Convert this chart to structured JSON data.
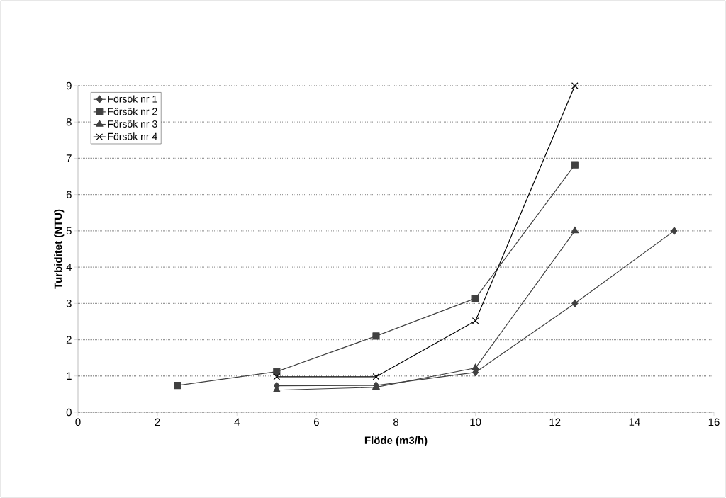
{
  "chart_data": {
    "type": "line",
    "xlabel": "Flöde (m3/h)",
    "ylabel": "Turbiditet (NTU)",
    "xlim": [
      0,
      16
    ],
    "xticks": [
      0,
      2,
      4,
      6,
      8,
      10,
      12,
      14,
      16
    ],
    "ylim": [
      0,
      9
    ],
    "yticks": [
      0,
      1,
      2,
      3,
      4,
      5,
      6,
      7,
      8,
      9
    ],
    "grid": "y",
    "legend": "top left",
    "line_style": "solid",
    "series": [
      {
        "name": "Försök nr 1",
        "color": "#404040",
        "marker": "diamond",
        "x": [
          5,
          7.5,
          10,
          12.5,
          15
        ],
        "values": [
          0.73,
          0.74,
          1.1,
          3.0,
          5.0
        ]
      },
      {
        "name": "Försök nr 2",
        "color": "#404040",
        "marker": "square",
        "x": [
          2.5,
          5,
          7.5,
          10,
          12.5
        ],
        "values": [
          0.74,
          1.12,
          2.1,
          3.14,
          6.82
        ]
      },
      {
        "name": "Försök nr 3",
        "color": "#404040",
        "marker": "triangle",
        "x": [
          5,
          7.5,
          10,
          12.5
        ],
        "values": [
          0.61,
          0.69,
          1.22,
          5.0
        ]
      },
      {
        "name": "Försök nr 4",
        "color": "#000000",
        "marker": "cross",
        "x": [
          5,
          7.5,
          10,
          12.5
        ],
        "values": [
          0.98,
          0.98,
          2.52,
          9.0
        ]
      }
    ]
  }
}
